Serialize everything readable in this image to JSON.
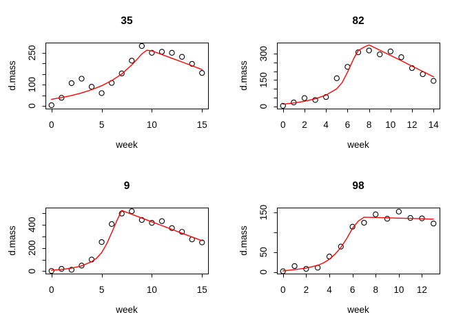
{
  "figure": {
    "background": "#ffffff",
    "axis_color": "#000000",
    "point_color": "#000000",
    "fit_line_color": "#ff0000",
    "marker": "open-circle",
    "grid": false,
    "legend": null
  },
  "chart_data": [
    {
      "type": "scatter",
      "title": "35",
      "xlabel": "week",
      "ylabel": "d.mass",
      "x": [
        0,
        1,
        2,
        3,
        4,
        5,
        6,
        7,
        8,
        9,
        10,
        11,
        12,
        13,
        14,
        15
      ],
      "y": [
        3,
        38,
        107,
        128,
        90,
        60,
        108,
        153,
        213,
        282,
        250,
        255,
        250,
        231,
        198,
        155
      ],
      "fit_line": [
        [
          0,
          31
        ],
        [
          1,
          39
        ],
        [
          2,
          49
        ],
        [
          3,
          61
        ],
        [
          4,
          76
        ],
        [
          5,
          95
        ],
        [
          6,
          119
        ],
        [
          7,
          150
        ],
        [
          8,
          193
        ],
        [
          8.5,
          218
        ],
        [
          9,
          245
        ],
        [
          9.5,
          262
        ],
        [
          10,
          259
        ],
        [
          11,
          242
        ],
        [
          12,
          224
        ],
        [
          13,
          207
        ],
        [
          14,
          189
        ],
        [
          15,
          171
        ]
      ],
      "xlim": [
        -0.6,
        15.6
      ],
      "ylim": [
        -13,
        298
      ],
      "xticks": [
        0,
        5,
        10,
        15
      ],
      "xtick_labels": [
        "0",
        "5",
        "10",
        "15"
      ],
      "yticks": [
        0,
        50,
        100,
        150,
        200,
        250
      ],
      "ytick_labels": [
        "0",
        "",
        "100",
        "",
        "",
        "250"
      ]
    },
    {
      "type": "scatter",
      "title": "82",
      "xlabel": "week",
      "ylabel": "d.mass",
      "x": [
        0,
        1,
        2,
        3,
        4,
        5,
        6,
        7,
        8,
        9,
        10,
        11,
        12,
        13,
        14
      ],
      "y": [
        3,
        22,
        47,
        36,
        53,
        160,
        225,
        308,
        318,
        296,
        313,
        280,
        218,
        183,
        145
      ],
      "fit_line": [
        [
          0,
          12
        ],
        [
          1,
          19
        ],
        [
          2,
          29
        ],
        [
          3,
          43
        ],
        [
          4,
          64
        ],
        [
          5,
          100
        ],
        [
          5.5,
          135
        ],
        [
          6,
          195
        ],
        [
          6.3,
          235
        ],
        [
          6.6,
          275
        ],
        [
          7,
          318
        ],
        [
          7.5,
          336
        ],
        [
          8,
          350
        ],
        [
          9,
          320
        ],
        [
          10,
          290
        ],
        [
          11,
          260
        ],
        [
          12,
          229
        ],
        [
          13,
          199
        ],
        [
          14,
          168
        ]
      ],
      "xlim": [
        -0.56,
        14.56
      ],
      "ylim": [
        -13,
        363
      ],
      "xticks": [
        0,
        2,
        4,
        6,
        8,
        10,
        12,
        14
      ],
      "xtick_labels": [
        "0",
        "2",
        "4",
        "6",
        "8",
        "10",
        "12",
        "14"
      ],
      "yticks": [
        0,
        50,
        100,
        150,
        200,
        250,
        300
      ],
      "ytick_labels": [
        "0",
        "",
        "",
        "150",
        "",
        "",
        "300"
      ]
    },
    {
      "type": "scatter",
      "title": "9",
      "xlabel": "week",
      "ylabel": "d.mass",
      "x": [
        0,
        1,
        2,
        3,
        4,
        5,
        6,
        7,
        8,
        9,
        10,
        11,
        12,
        13,
        14,
        15
      ],
      "y": [
        2,
        20,
        12,
        48,
        100,
        250,
        405,
        495,
        515,
        440,
        415,
        430,
        370,
        338,
        273,
        247
      ],
      "fit_line": [
        [
          0,
          8
        ],
        [
          1,
          15
        ],
        [
          2,
          26
        ],
        [
          3,
          45
        ],
        [
          4,
          82
        ],
        [
          4.5,
          112
        ],
        [
          5,
          160
        ],
        [
          5.5,
          235
        ],
        [
          6,
          330
        ],
        [
          6.5,
          430
        ],
        [
          7,
          522
        ],
        [
          8,
          489
        ],
        [
          9,
          456
        ],
        [
          10,
          424
        ],
        [
          11,
          392
        ],
        [
          12,
          359
        ],
        [
          13,
          326
        ],
        [
          14,
          294
        ],
        [
          15,
          262
        ]
      ],
      "xlim": [
        -0.6,
        15.6
      ],
      "ylim": [
        -21,
        546
      ],
      "xticks": [
        0,
        5,
        10,
        15
      ],
      "xtick_labels": [
        "0",
        "5",
        "10",
        "15"
      ],
      "yticks": [
        0,
        100,
        200,
        300,
        400,
        500
      ],
      "ytick_labels": [
        "0",
        "",
        "200",
        "",
        "400",
        ""
      ]
    },
    {
      "type": "scatter",
      "title": "98",
      "xlabel": "week",
      "ylabel": "d.mass",
      "x": [
        0,
        1,
        2,
        3,
        4,
        5,
        6,
        7,
        8,
        9,
        10,
        11,
        12,
        13
      ],
      "y": [
        2,
        15,
        8,
        11,
        39,
        64,
        114,
        124,
        145,
        134,
        152,
        136,
        135,
        122
      ],
      "fit_line": [
        [
          0,
          3
        ],
        [
          1,
          6
        ],
        [
          2,
          10
        ],
        [
          3,
          17
        ],
        [
          3.5,
          23
        ],
        [
          4,
          32
        ],
        [
          4.5,
          45
        ],
        [
          5,
          62
        ],
        [
          5.5,
          84
        ],
        [
          6,
          110
        ],
        [
          6.5,
          128
        ],
        [
          7,
          138
        ],
        [
          8,
          137.2
        ],
        [
          9,
          136.4
        ],
        [
          10,
          135.6
        ],
        [
          11,
          134.8
        ],
        [
          12,
          134
        ],
        [
          13,
          133
        ]
      ],
      "xlim": [
        -0.52,
        13.52
      ],
      "ylim": [
        -4,
        162
      ],
      "xticks": [
        0,
        2,
        4,
        6,
        8,
        10,
        12
      ],
      "xtick_labels": [
        "0",
        "2",
        "4",
        "6",
        "8",
        "10",
        "12"
      ],
      "yticks": [
        0,
        50,
        100,
        150
      ],
      "ytick_labels": [
        "0",
        "50",
        "",
        "150"
      ]
    }
  ]
}
